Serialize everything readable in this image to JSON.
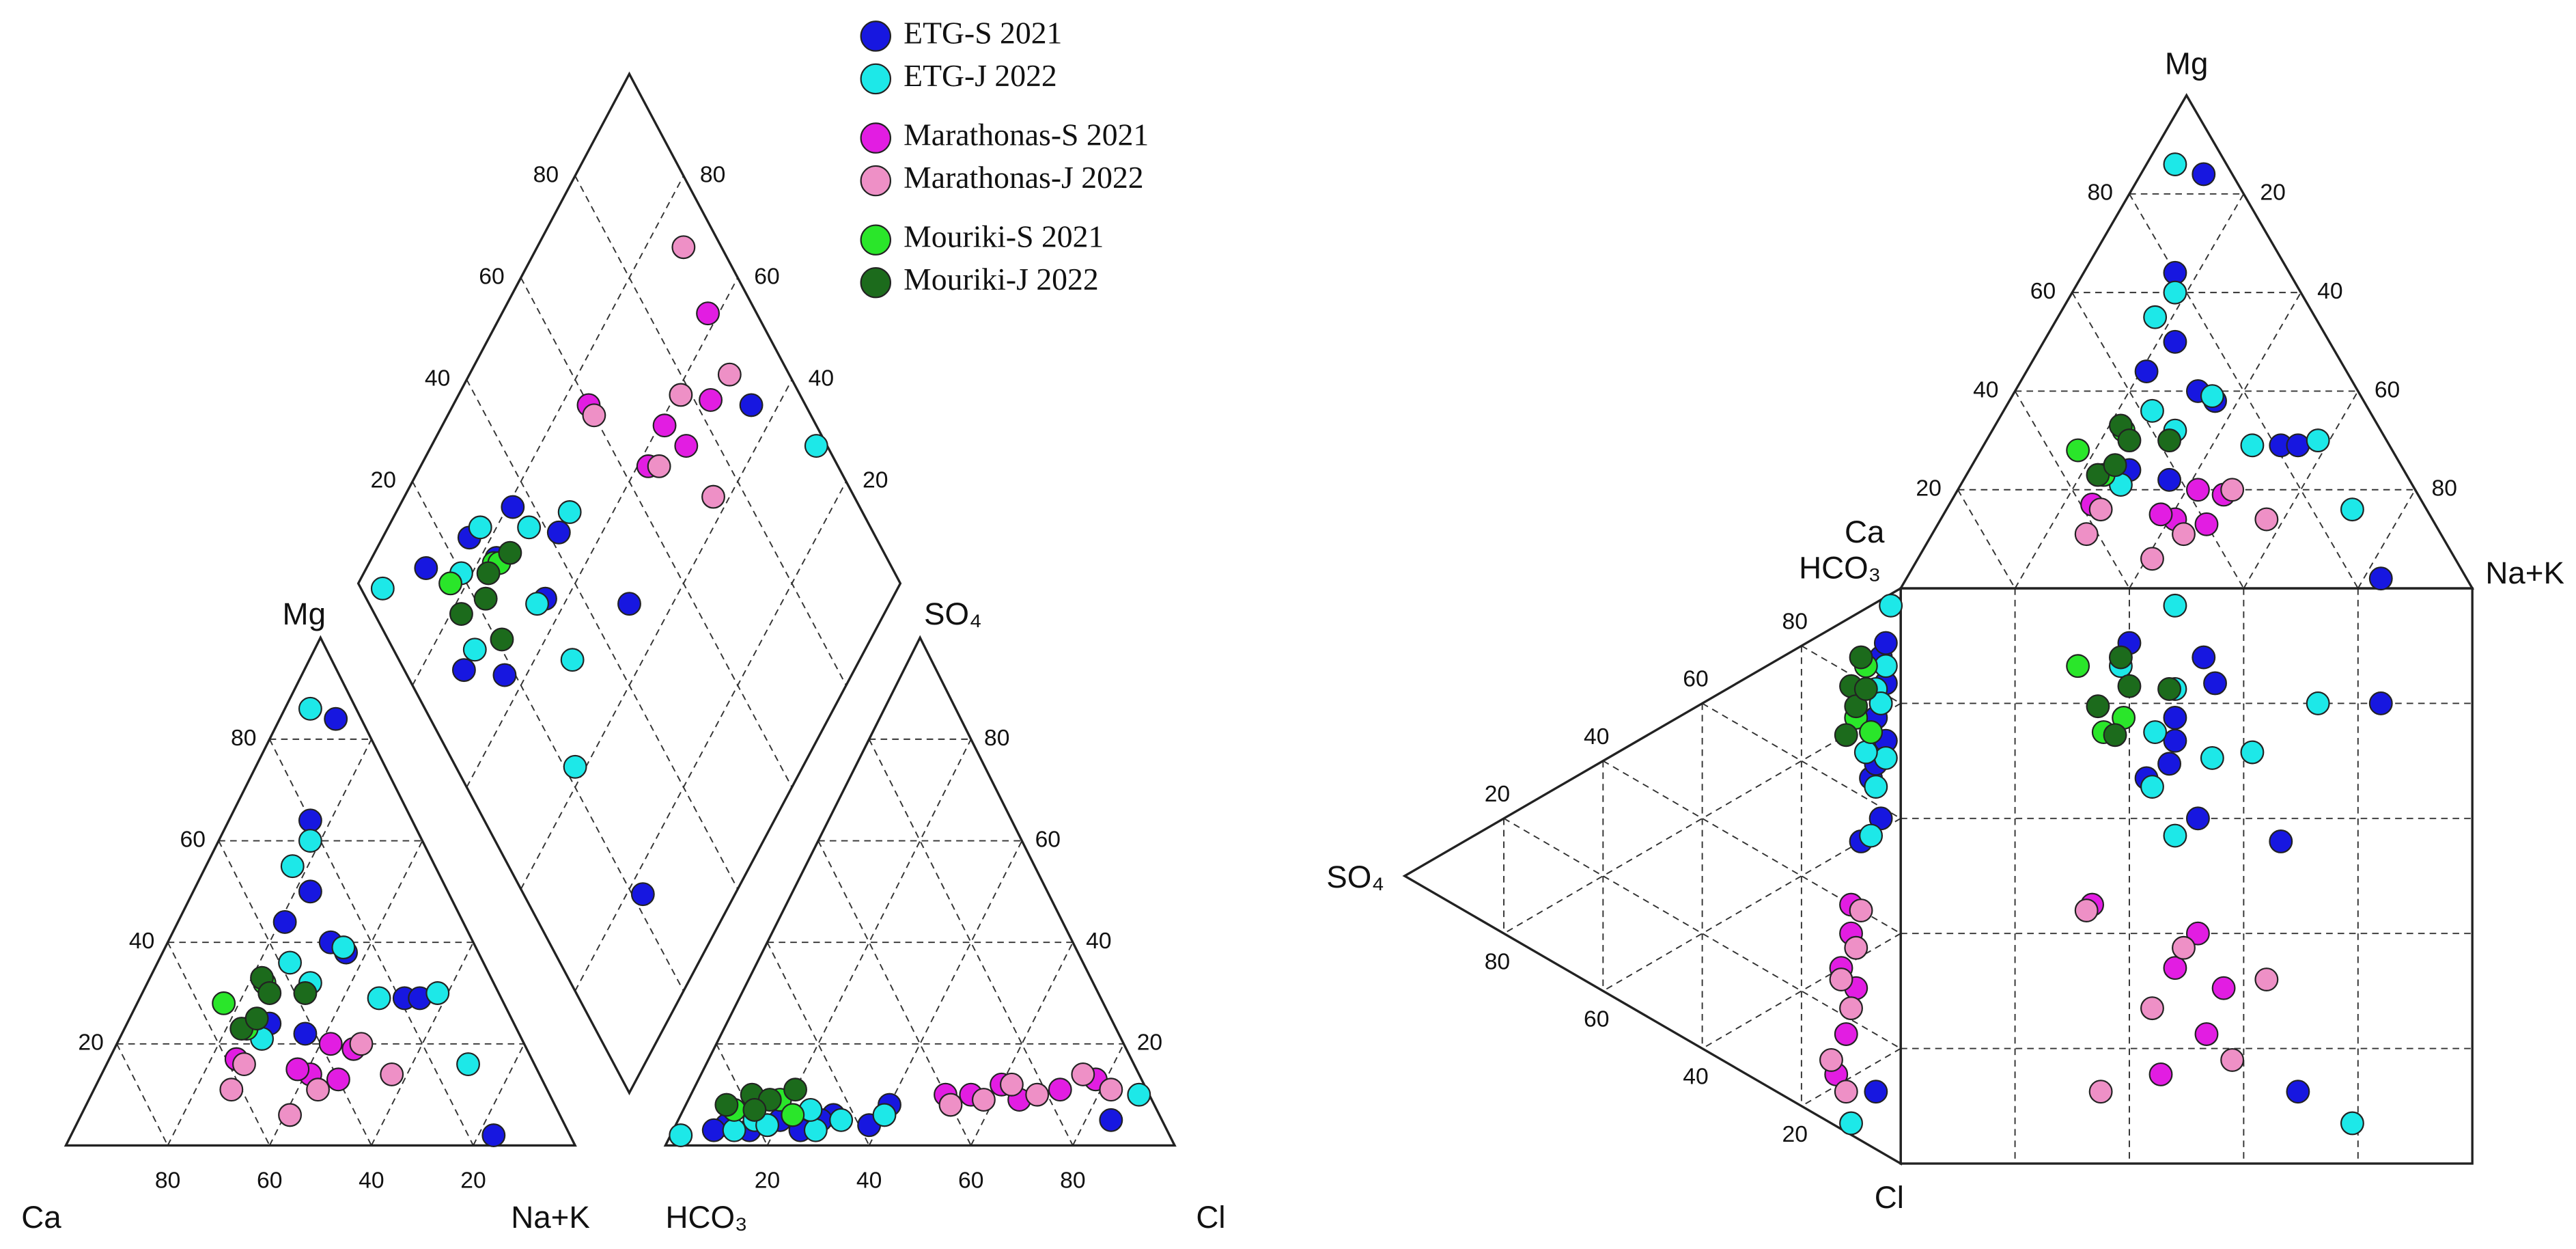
{
  "chart_data": [
    {
      "type": "piper",
      "labels": {
        "ca": "Ca",
        "mg": "Mg",
        "nak": "Na+K",
        "hco3": "HCO₃",
        "so4": "SO₄",
        "cl": "Cl"
      },
      "ticks": [
        20,
        40,
        60,
        80
      ],
      "grid": true,
      "series": [
        {
          "name": "ETG-S 2021",
          "color": "#1717e0",
          "values": [
            [
              84,
              11,
              4,
              10
            ],
            [
              64,
              16,
              5,
              20
            ],
            [
              50,
              23,
              3,
              25
            ],
            [
              44,
              21,
              6,
              30
            ],
            [
              40,
              32,
              4,
              38
            ],
            [
              38,
              36,
              3,
              15
            ],
            [
              29,
              52,
              8,
              40
            ],
            [
              29,
              55,
              5,
              85
            ],
            [
              24,
              28,
              3,
              8
            ],
            [
              2,
              83,
              4,
              18
            ],
            [
              22,
              36,
              5,
              28
            ]
          ]
        },
        {
          "name": "ETG-J 2022",
          "color": "#1de8e8",
          "values": [
            [
              86,
              5,
              2,
              2
            ],
            [
              60,
              18,
              5,
              15
            ],
            [
              55,
              17,
              6,
              22
            ],
            [
              39,
              35,
              3,
              28
            ],
            [
              36,
              26,
              5,
              32
            ],
            [
              29,
              47,
              7,
              25
            ],
            [
              30,
              58,
              4,
              18
            ],
            [
              16,
              71,
              10,
              88
            ],
            [
              21,
              28,
              3,
              12
            ],
            [
              32,
              32,
              6,
              40
            ]
          ]
        },
        {
          "name": "Marathonas-S 2021",
          "color": "#e21de2",
          "values": [
            [
              20,
              42,
              10,
              55
            ],
            [
              14,
              41,
              12,
              60
            ],
            [
              19,
              47,
              9,
              65
            ],
            [
              13,
              47,
              11,
              72
            ],
            [
              15,
              38,
              13,
              78
            ],
            [
              17,
              25,
              10,
              50
            ]
          ]
        },
        {
          "name": "Marathonas-J 2022",
          "color": "#ee90c6",
          "values": [
            [
              11,
              27,
              8,
              52
            ],
            [
              14,
              57,
              12,
              62
            ],
            [
              6,
              41,
              10,
              68
            ],
            [
              20,
              48,
              14,
              75
            ],
            [
              11,
              44,
              9,
              58
            ],
            [
              16,
              27,
              11,
              82
            ]
          ]
        },
        {
          "name": "Mouriki-S 2021",
          "color": "#2ae62a",
          "values": [
            [
              28,
              17,
              7,
              10
            ],
            [
              32,
              23,
              9,
              18
            ],
            [
              23,
              24,
              6,
              22
            ]
          ]
        },
        {
          "name": "Mouriki-J 2022",
          "color": "#1c6b1c",
          "values": [
            [
              33,
              22,
              8,
              8
            ],
            [
              30,
              25,
              10,
              12
            ],
            [
              23,
              23,
              9,
              16
            ],
            [
              30,
              32,
              7,
              14
            ],
            [
              25,
              25,
              11,
              20
            ]
          ]
        }
      ]
    },
    {
      "type": "durov",
      "labels": {
        "ca": "Ca",
        "mg": "Mg",
        "nak": "Na+K",
        "hco3": "HCO₃",
        "so4": "SO₄",
        "cl": "Cl"
      },
      "ticks": [
        20,
        40,
        60,
        80
      ],
      "grid": true
    }
  ]
}
